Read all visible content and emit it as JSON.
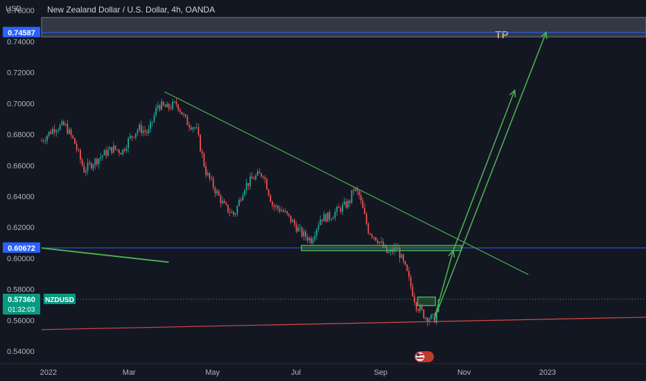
{
  "header": {
    "unit": "USD",
    "symbol_title": "New Zealand Dollar / U.S. Dollar, 4h, OANDA"
  },
  "colors": {
    "background": "#131722",
    "up": "#26a69a",
    "down": "#ef5350",
    "blue_line": "#2962ff",
    "trend_green": "#4caf50",
    "support_red": "#d84a4a",
    "tp_text": "#c8a97a"
  },
  "chart_data": {
    "type": "candlestick",
    "ylim": [
      0.532,
      0.7668
    ],
    "xlim": [
      "2021-12-27",
      "2023-03-14"
    ],
    "yticks": [
      "0.76000",
      "0.74000",
      "0.72000",
      "0.70000",
      "0.68000",
      "0.66000",
      "0.64000",
      "0.62000",
      "0.60000",
      "0.58000",
      "0.56000",
      "0.54000"
    ],
    "yticks_values": [
      0.76,
      0.74,
      0.72,
      0.7,
      0.68,
      0.66,
      0.64,
      0.62,
      0.6,
      0.58,
      0.56,
      0.54
    ],
    "xticks": [
      {
        "label": "2022",
        "date": "2022-01-01"
      },
      {
        "label": "Mar",
        "date": "2022-03-01"
      },
      {
        "label": "May",
        "date": "2022-05-01"
      },
      {
        "label": "Jul",
        "date": "2022-07-01"
      },
      {
        "label": "Sep",
        "date": "2022-09-01"
      },
      {
        "label": "Nov",
        "date": "2022-11-01"
      },
      {
        "label": "2023",
        "date": "2023-01-01"
      }
    ],
    "price_path": [
      [
        "2021-12-27",
        0.676
      ],
      [
        "2022-01-05",
        0.684
      ],
      [
        "2022-01-13",
        0.686
      ],
      [
        "2022-01-20",
        0.675
      ],
      [
        "2022-01-27",
        0.657
      ],
      [
        "2022-02-03",
        0.662
      ],
      [
        "2022-02-10",
        0.667
      ],
      [
        "2022-02-17",
        0.671
      ],
      [
        "2022-02-24",
        0.669
      ],
      [
        "2022-03-01",
        0.677
      ],
      [
        "2022-03-08",
        0.684
      ],
      [
        "2022-03-15",
        0.681
      ],
      [
        "2022-03-22",
        0.699
      ],
      [
        "2022-03-29",
        0.697
      ],
      [
        "2022-04-05",
        0.7
      ],
      [
        "2022-04-12",
        0.688
      ],
      [
        "2022-04-19",
        0.684
      ],
      [
        "2022-04-26",
        0.656
      ],
      [
        "2022-05-03",
        0.644
      ],
      [
        "2022-05-10",
        0.633
      ],
      [
        "2022-05-17",
        0.628
      ],
      [
        "2022-05-24",
        0.646
      ],
      [
        "2022-05-31",
        0.652
      ],
      [
        "2022-06-07",
        0.655
      ],
      [
        "2022-06-14",
        0.634
      ],
      [
        "2022-06-21",
        0.631
      ],
      [
        "2022-06-28",
        0.624
      ],
      [
        "2022-07-05",
        0.616
      ],
      [
        "2022-07-12",
        0.612
      ],
      [
        "2022-07-19",
        0.626
      ],
      [
        "2022-07-26",
        0.627
      ],
      [
        "2022-08-02",
        0.632
      ],
      [
        "2022-08-09",
        0.636
      ],
      [
        "2022-08-12",
        0.645
      ],
      [
        "2022-08-16",
        0.641
      ],
      [
        "2022-08-23",
        0.618
      ],
      [
        "2022-08-30",
        0.612
      ],
      [
        "2022-09-06",
        0.603
      ],
      [
        "2022-09-13",
        0.607
      ],
      [
        "2022-09-20",
        0.591
      ],
      [
        "2022-09-27",
        0.57
      ],
      [
        "2022-10-04",
        0.562
      ],
      [
        "2022-10-11",
        0.561
      ],
      [
        "2022-10-13",
        0.57
      ],
      [
        "2022-10-14",
        0.5736
      ]
    ],
    "last_price": {
      "label": "0.57360",
      "value": 0.5736,
      "symbol": "NZDUSD",
      "countdown": "01:32:03"
    },
    "horizontal_levels": [
      {
        "label": "0.74587",
        "value": 0.74587
      },
      {
        "label": "0.60672",
        "value": 0.60672
      }
    ],
    "tp_zone": {
      "from": 0.743,
      "to": 0.7555,
      "label": "TP"
    },
    "trendlines": [
      {
        "name": "descending-resistance",
        "from": [
          "2022-03-27",
          0.7075
        ],
        "to": [
          "2022-12-18",
          0.5895
        ]
      },
      {
        "name": "rising-support",
        "from": [
          "2021-12-27",
          0.554
        ],
        "to": [
          "2023-03-14",
          0.562
        ]
      },
      {
        "name": "left-green-line",
        "from": [
          "2021-12-27",
          0.6067
        ],
        "to": [
          "2022-03-30",
          0.5975
        ]
      }
    ],
    "boxes": [
      {
        "name": "support-box",
        "from": [
          "2022-07-05",
          0.605
        ],
        "to": [
          "2022-10-30",
          0.6083
        ]
      },
      {
        "name": "bottom-box",
        "from": [
          "2022-09-28",
          0.5695
        ],
        "to": [
          "2022-10-11",
          0.575
        ]
      }
    ],
    "arrows": [
      {
        "name": "arrow-up-1",
        "from": [
          "2022-10-10",
          0.5605
        ],
        "to": [
          "2022-10-24",
          0.605
        ]
      },
      {
        "name": "arrow-up-2",
        "from": [
          "2022-10-24",
          0.605
        ],
        "to": [
          "2022-12-08",
          0.7085
        ]
      },
      {
        "name": "arrow-up-3",
        "from": [
          "2022-10-10",
          0.5605
        ],
        "to": [
          "2022-12-31",
          0.746
        ]
      }
    ]
  }
}
